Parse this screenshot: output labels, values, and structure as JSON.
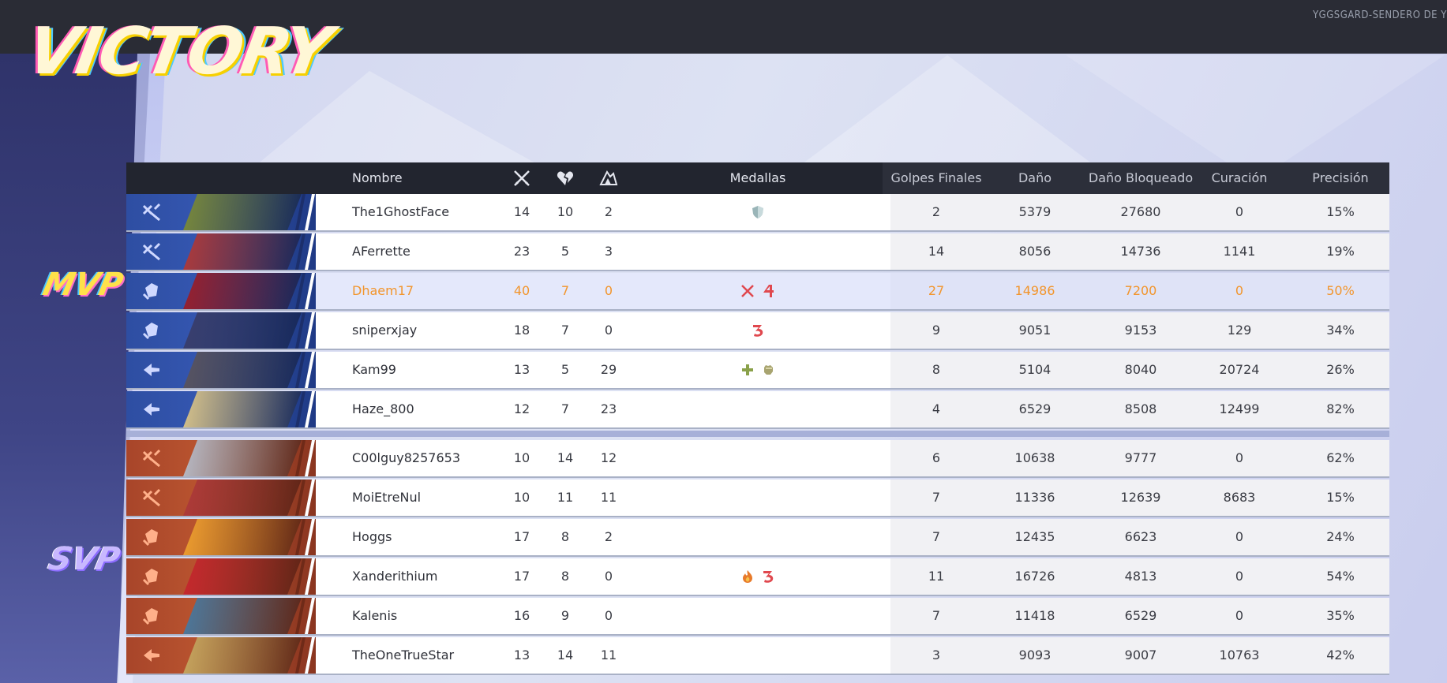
{
  "map_name": "YGGSGARD-SENDERO DE YGG",
  "result": "VICTORY",
  "badges": {
    "mvp": "MVP",
    "svp": "SVP"
  },
  "columns": {
    "name": "Nombre",
    "kills_icon": "crossed-swords-icon",
    "deaths_icon": "broken-heart-icon",
    "assists_icon": "assist-hands-icon",
    "medals": "Medallas",
    "final_hits": "Golpes Finales",
    "damage": "Daño",
    "damage_blocked": "Daño Bloqueado",
    "healing": "Curación",
    "accuracy": "Precisión"
  },
  "colors": {
    "mvp_highlight": "#f2952c",
    "ally": "#3456b0",
    "enemy": "#b9542f"
  },
  "ally_team": [
    {
      "name": "The1GhostFace",
      "role": "vanguard",
      "kills": "14",
      "deaths": "10",
      "assists": "2",
      "medals": [
        "shield-medal-icon"
      ],
      "final_hits": "2",
      "damage": "5379",
      "blocked": "27680",
      "healing": "0",
      "accuracy": "15%",
      "hero_color": "#7a8a3a"
    },
    {
      "name": "AFerrette",
      "role": "vanguard",
      "kills": "23",
      "deaths": "5",
      "assists": "3",
      "medals": [],
      "final_hits": "14",
      "damage": "8056",
      "blocked": "14736",
      "healing": "1141",
      "accuracy": "19%",
      "hero_color": "#b03a3a"
    },
    {
      "name": "Dhaem17",
      "role": "duelist",
      "kills": "40",
      "deaths": "7",
      "assists": "0",
      "medals": [
        "swords-medal-icon",
        "four-medal-icon"
      ],
      "final_hits": "27",
      "damage": "14986",
      "blocked": "7200",
      "healing": "0",
      "accuracy": "50%",
      "hero_color": "#9b1f2c",
      "mvp": true
    },
    {
      "name": "sniperxjay",
      "role": "duelist",
      "kills": "18",
      "deaths": "7",
      "assists": "0",
      "medals": [
        "three-medal-icon"
      ],
      "final_hits": "9",
      "damage": "9051",
      "blocked": "9153",
      "healing": "129",
      "accuracy": "34%",
      "hero_color": "#3a3f6e"
    },
    {
      "name": "Kam99",
      "role": "strategist",
      "kills": "13",
      "deaths": "5",
      "assists": "29",
      "medals": [
        "heal-plus-medal-icon",
        "fist-medal-icon"
      ],
      "final_hits": "8",
      "damage": "5104",
      "blocked": "8040",
      "healing": "20724",
      "accuracy": "26%",
      "hero_color": "#5a5560"
    },
    {
      "name": "Haze_800",
      "role": "strategist",
      "kills": "12",
      "deaths": "7",
      "assists": "23",
      "medals": [],
      "final_hits": "4",
      "damage": "6529",
      "blocked": "8508",
      "healing": "12499",
      "accuracy": "82%",
      "hero_color": "#d9c48a"
    }
  ],
  "enemy_team": [
    {
      "name": "C00lguy8257653",
      "role": "vanguard",
      "kills": "10",
      "deaths": "14",
      "assists": "12",
      "medals": [],
      "final_hits": "6",
      "damage": "10638",
      "blocked": "9777",
      "healing": "0",
      "accuracy": "62%",
      "hero_color": "#b8bcc8"
    },
    {
      "name": "MoiEtreNul",
      "role": "vanguard",
      "kills": "10",
      "deaths": "11",
      "assists": "11",
      "medals": [],
      "final_hits": "7",
      "damage": "11336",
      "blocked": "12639",
      "healing": "8683",
      "accuracy": "15%",
      "hero_color": "#b03a3a"
    },
    {
      "name": "Hoggs",
      "role": "duelist",
      "kills": "17",
      "deaths": "8",
      "assists": "2",
      "medals": [],
      "final_hits": "7",
      "damage": "12435",
      "blocked": "6623",
      "healing": "0",
      "accuracy": "24%",
      "hero_color": "#f0a030"
    },
    {
      "name": "Xanderithium",
      "role": "duelist",
      "kills": "17",
      "deaths": "8",
      "assists": "0",
      "medals": [
        "fire-medal-icon",
        "three-medal-icon"
      ],
      "final_hits": "11",
      "damage": "16726",
      "blocked": "4813",
      "healing": "0",
      "accuracy": "54%",
      "hero_color": "#c8282e",
      "svp": true
    },
    {
      "name": "Kalenis",
      "role": "duelist",
      "kills": "16",
      "deaths": "9",
      "assists": "0",
      "medals": [],
      "final_hits": "7",
      "damage": "11418",
      "blocked": "6529",
      "healing": "0",
      "accuracy": "35%",
      "hero_color": "#4a7aa0"
    },
    {
      "name": "TheOneTrueStar",
      "role": "strategist",
      "kills": "13",
      "deaths": "14",
      "assists": "11",
      "medals": [],
      "final_hits": "3",
      "damage": "9093",
      "blocked": "9007",
      "healing": "10763",
      "accuracy": "42%",
      "hero_color": "#c8a860"
    }
  ]
}
